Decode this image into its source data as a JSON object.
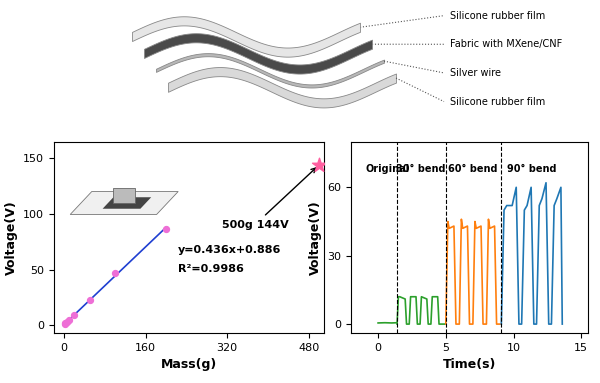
{
  "diagram": {
    "layers": [
      {
        "label": "Silicone rubber film",
        "color": "#e6e6e6"
      },
      {
        "label": "Fabric with MXene/CNF",
        "color": "#4a4a4a"
      },
      {
        "label": "Silver wire",
        "color": "#b8b8b8"
      },
      {
        "label": "Silicone rubber film",
        "color": "#d9d9d9"
      }
    ]
  },
  "chart_data": [
    {
      "type": "scatter",
      "x_label": "Mass(g)",
      "y_label": "Voltage(V)",
      "x": [
        1,
        2,
        5,
        10,
        20,
        50,
        100,
        200
      ],
      "values": [
        1.3,
        1.8,
        3.1,
        5.2,
        9.6,
        22.7,
        47,
        87
      ],
      "color": "#ee6fd6",
      "marker": "circle",
      "fit": {
        "slope": 0.436,
        "intercept": 0.886,
        "x": [
          0,
          200
        ],
        "color": "#1f3fd1",
        "equation": "y=0.436x+0.886",
        "r_squared": "R²=0.9986"
      },
      "highlight": {
        "x": 500,
        "y": 144,
        "label": "500g 144V",
        "color": "#ff5fa0",
        "marker": "star"
      },
      "xlim": [
        -20,
        510
      ],
      "xticks": [
        0,
        160,
        320,
        480
      ],
      "ylim": [
        -7,
        165
      ],
      "yticks": [
        0,
        50,
        100,
        150
      ]
    },
    {
      "type": "line",
      "x_label": "Time(s)",
      "y_label": "Voltage(V)",
      "segments": [
        {
          "label": "Original",
          "color": "#2ca02c",
          "x": [
            0,
            0.5,
            1.0,
            1.4
          ],
          "values": [
            0.5,
            0.6,
            0.5,
            0.6
          ]
        },
        {
          "label": "30° bend",
          "color": "#2ca02c",
          "x": [
            1.4,
            1.5,
            1.6,
            2.0,
            2.1,
            2.3,
            2.4,
            2.8,
            2.9,
            3.1,
            3.2,
            3.6,
            3.7,
            3.9,
            4.0,
            4.4,
            4.5,
            4.9
          ],
          "values": [
            0,
            12,
            12,
            11,
            0,
            0,
            12,
            12,
            0,
            0,
            12,
            11,
            0,
            0,
            12,
            12,
            0,
            0
          ]
        },
        {
          "label": "60° bend",
          "color": "#ff7f0e",
          "x": [
            5.0,
            5.15,
            5.25,
            5.6,
            5.75,
            6.0,
            6.15,
            6.25,
            6.6,
            6.75,
            7.0,
            7.15,
            7.25,
            7.6,
            7.75,
            8.0,
            8.15,
            8.25,
            8.6,
            8.75,
            9.0
          ],
          "values": [
            0,
            45,
            42,
            43,
            0,
            0,
            46,
            42,
            43,
            0,
            0,
            45,
            42,
            43,
            0,
            0,
            46,
            42,
            43,
            0,
            0
          ]
        },
        {
          "label": "90° bend",
          "color": "#1f77b4",
          "x": [
            9.1,
            9.3,
            9.5,
            9.9,
            10.2,
            10.4,
            10.6,
            10.8,
            11.0,
            11.3,
            11.5,
            11.7,
            11.9,
            12.1,
            12.4,
            12.6,
            12.8,
            13.0,
            13.2,
            13.5,
            13.6
          ],
          "values": [
            0,
            50,
            52,
            52,
            60,
            0,
            0,
            50,
            52,
            60,
            0,
            0,
            52,
            55,
            62,
            0,
            0,
            52,
            55,
            60,
            0
          ]
        }
      ],
      "separators": [
        1.4,
        5.0,
        9.1
      ],
      "xlim": [
        -2,
        15.5
      ],
      "xticks": [
        0,
        5,
        10,
        15
      ],
      "ylim": [
        -4,
        80
      ],
      "yticks": [
        0,
        30,
        60
      ]
    }
  ]
}
